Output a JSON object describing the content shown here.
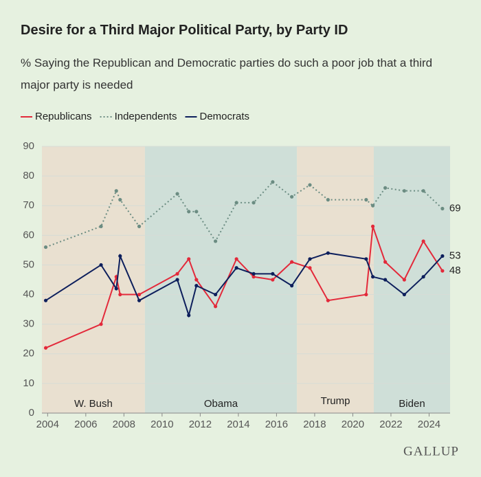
{
  "chart_data": {
    "type": "line",
    "title": "Desire for a Third Major Political Party, by Party ID",
    "subtitle": "% Saying the Republican and Democratic parties do such a poor job that a third major party is needed",
    "source": "GALLUP",
    "x": [
      2003.9,
      2006.8,
      2007.6,
      2007.8,
      2008.8,
      2010.8,
      2011.4,
      2011.8,
      2012.8,
      2013.9,
      2014.8,
      2015.8,
      2016.8,
      2017.75,
      2018.7,
      2020.7,
      2021.05,
      2021.7,
      2022.7,
      2023.7,
      2024.7
    ],
    "series": [
      {
        "name": "Republicans",
        "color": "#e3293a",
        "style": "solid",
        "values": [
          22,
          30,
          46,
          40,
          40,
          47,
          52,
          45,
          36,
          52,
          46,
          45,
          51,
          49,
          38,
          40,
          63,
          51,
          45,
          58,
          48
        ]
      },
      {
        "name": "Independents",
        "color": "#6b8c82",
        "style": "dotted",
        "values": [
          56,
          63,
          75,
          72,
          63,
          74,
          68,
          68,
          58,
          71,
          71,
          78,
          73,
          77,
          72,
          72,
          70,
          76,
          75,
          75,
          69
        ]
      },
      {
        "name": "Democrats",
        "color": "#0d1f5c",
        "style": "solid",
        "values": [
          38,
          50,
          42,
          53,
          38,
          45,
          33,
          43,
          40,
          49,
          47,
          47,
          43,
          52,
          54,
          52,
          46,
          45,
          40,
          46,
          53
        ]
      }
    ],
    "periods": [
      {
        "label": "W. Bush",
        "start": 2003.7,
        "end": 2009.1,
        "color": "#e9e0d0"
      },
      {
        "label": "Obama",
        "start": 2009.1,
        "end": 2017.07,
        "color": "#cfdfd8"
      },
      {
        "label": "Trump",
        "start": 2017.07,
        "end": 2021.1,
        "color": "#e9e0d0"
      },
      {
        "label": "Biden",
        "start": 2021.1,
        "end": 2025.1,
        "color": "#cfdfd8"
      }
    ],
    "xlim": [
      2003.7,
      2025.1
    ],
    "xticks": [
      2004,
      2006,
      2008,
      2010,
      2012,
      2014,
      2016,
      2018,
      2020,
      2022,
      2024
    ],
    "ylim": [
      0,
      90
    ],
    "yticks": [
      0,
      10,
      20,
      30,
      40,
      50,
      60,
      70,
      80,
      90
    ],
    "grid": true,
    "legend": "top-left"
  }
}
